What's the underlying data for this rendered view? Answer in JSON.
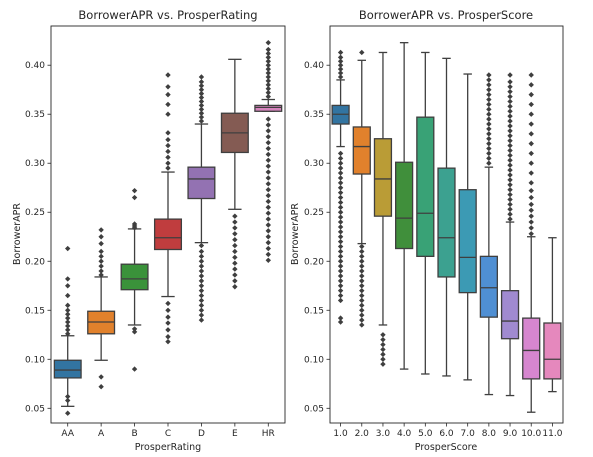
{
  "chart_data": [
    {
      "type": "box",
      "title": "BorrowerAPR vs. ProsperRating",
      "xlabel": "ProsperRating",
      "ylabel": "BorrowerAPR",
      "ylim": [
        0.035,
        0.44
      ],
      "yticks": [
        0.05,
        0.1,
        0.15,
        0.2,
        0.25,
        0.3,
        0.35,
        0.4
      ],
      "ytick_labels": [
        "0.05",
        "0.10",
        "0.15",
        "0.20",
        "0.25",
        "0.30",
        "0.35",
        "0.40"
      ],
      "grid": false,
      "categories": [
        "AA",
        "A",
        "B",
        "C",
        "D",
        "E",
        "HR"
      ],
      "boxes": [
        {
          "color": "#3274a1",
          "whislo": 0.052,
          "q1": 0.081,
          "med": 0.089,
          "q3": 0.099,
          "whishi": 0.124,
          "fliers": [
            0.045,
            0.058,
            0.062,
            0.126,
            0.13,
            0.134,
            0.138,
            0.142,
            0.146,
            0.15,
            0.155,
            0.165,
            0.175,
            0.182,
            0.213
          ]
        },
        {
          "color": "#e1812c",
          "whislo": 0.099,
          "q1": 0.126,
          "med": 0.138,
          "q3": 0.149,
          "whishi": 0.184,
          "fliers": [
            0.072,
            0.082,
            0.186,
            0.19,
            0.195,
            0.2,
            0.205,
            0.21,
            0.218,
            0.225,
            0.232
          ]
        },
        {
          "color": "#3a923a",
          "whislo": 0.135,
          "q1": 0.171,
          "med": 0.182,
          "q3": 0.197,
          "whishi": 0.233,
          "fliers": [
            0.09,
            0.128,
            0.131,
            0.234,
            0.236,
            0.238,
            0.265,
            0.272
          ]
        },
        {
          "color": "#c03d3e",
          "whislo": 0.164,
          "q1": 0.212,
          "med": 0.224,
          "q3": 0.243,
          "whishi": 0.291,
          "fliers": [
            0.118,
            0.123,
            0.13,
            0.137,
            0.143,
            0.15,
            0.157,
            0.295,
            0.3,
            0.306,
            0.312,
            0.318,
            0.324,
            0.331,
            0.35,
            0.36,
            0.37,
            0.378,
            0.39
          ]
        },
        {
          "color": "#9372b2",
          "whislo": 0.219,
          "q1": 0.264,
          "med": 0.284,
          "q3": 0.296,
          "whishi": 0.34,
          "fliers": [
            0.14,
            0.145,
            0.15,
            0.155,
            0.16,
            0.165,
            0.17,
            0.175,
            0.18,
            0.185,
            0.19,
            0.195,
            0.2,
            0.205,
            0.21,
            0.216,
            0.343,
            0.347,
            0.351,
            0.355,
            0.359,
            0.363,
            0.367,
            0.371,
            0.375,
            0.379,
            0.383,
            0.388
          ]
        },
        {
          "color": "#845b53",
          "whislo": 0.253,
          "q1": 0.311,
          "med": 0.331,
          "q3": 0.351,
          "whishi": 0.406,
          "fliers": [
            0.174,
            0.18,
            0.186,
            0.192,
            0.198,
            0.204,
            0.21,
            0.216,
            0.222,
            0.228,
            0.234,
            0.24,
            0.246
          ]
        },
        {
          "color": "#d684bd",
          "whislo": 0.353,
          "q1": 0.353,
          "med": 0.357,
          "q3": 0.359,
          "whishi": 0.365,
          "fliers": [
            0.201,
            0.207,
            0.213,
            0.219,
            0.225,
            0.231,
            0.237,
            0.243,
            0.249,
            0.255,
            0.261,
            0.267,
            0.273,
            0.279,
            0.285,
            0.291,
            0.297,
            0.303,
            0.309,
            0.315,
            0.321,
            0.327,
            0.333,
            0.339,
            0.345,
            0.368,
            0.372,
            0.376,
            0.38,
            0.384,
            0.388,
            0.392,
            0.396,
            0.4,
            0.404,
            0.408,
            0.412,
            0.416,
            0.423
          ]
        }
      ]
    },
    {
      "type": "box",
      "title": "BorrowerAPR vs. ProsperScore",
      "xlabel": "ProsperScore",
      "ylabel": "BorrowerAPR",
      "ylim": [
        0.035,
        0.44
      ],
      "yticks": [
        0.05,
        0.1,
        0.15,
        0.2,
        0.25,
        0.3,
        0.35,
        0.4
      ],
      "ytick_labels": [
        "0.05",
        "0.10",
        "0.15",
        "0.20",
        "0.25",
        "0.30",
        "0.35",
        "0.40"
      ],
      "grid": false,
      "categories": [
        "1.0",
        "2.0",
        "3.0",
        "4.0",
        "5.0",
        "6.0",
        "7.0",
        "8.0",
        "9.0",
        "10.0",
        "11.0"
      ],
      "boxes": [
        {
          "color": "#3274a1",
          "whislo": 0.317,
          "q1": 0.34,
          "med": 0.35,
          "q3": 0.359,
          "whishi": 0.385,
          "fliers": [
            0.138,
            0.142,
            0.16,
            0.165,
            0.17,
            0.175,
            0.18,
            0.185,
            0.19,
            0.195,
            0.2,
            0.205,
            0.21,
            0.215,
            0.22,
            0.225,
            0.23,
            0.235,
            0.24,
            0.245,
            0.25,
            0.255,
            0.26,
            0.265,
            0.27,
            0.275,
            0.28,
            0.285,
            0.29,
            0.295,
            0.3,
            0.305,
            0.31,
            0.388,
            0.392,
            0.396,
            0.4,
            0.404,
            0.408,
            0.413
          ]
        },
        {
          "color": "#e1812c",
          "whislo": 0.218,
          "q1": 0.289,
          "med": 0.317,
          "q3": 0.337,
          "whishi": 0.405,
          "fliers": [
            0.135,
            0.14,
            0.145,
            0.15,
            0.155,
            0.16,
            0.165,
            0.17,
            0.175,
            0.18,
            0.185,
            0.19,
            0.195,
            0.2,
            0.205,
            0.21,
            0.215,
            0.413
          ]
        },
        {
          "color": "#ba9c36",
          "whislo": 0.135,
          "q1": 0.246,
          "med": 0.284,
          "q3": 0.325,
          "whishi": 0.413,
          "fliers": [
            0.095,
            0.1,
            0.105,
            0.11,
            0.115,
            0.12,
            0.125
          ]
        },
        {
          "color": "#408f3b",
          "whislo": 0.09,
          "q1": 0.213,
          "med": 0.244,
          "q3": 0.301,
          "whishi": 0.423,
          "fliers": []
        },
        {
          "color": "#39a276",
          "whislo": 0.085,
          "q1": 0.205,
          "med": 0.249,
          "q3": 0.347,
          "whishi": 0.413,
          "fliers": []
        },
        {
          "color": "#3ca190",
          "whislo": 0.083,
          "q1": 0.184,
          "med": 0.224,
          "q3": 0.295,
          "whishi": 0.407,
          "fliers": []
        },
        {
          "color": "#3c9ab4",
          "whislo": 0.079,
          "q1": 0.168,
          "med": 0.204,
          "q3": 0.273,
          "whishi": 0.391,
          "fliers": []
        },
        {
          "color": "#4f8fd3",
          "whislo": 0.064,
          "q1": 0.143,
          "med": 0.173,
          "q3": 0.205,
          "whishi": 0.296,
          "fliers": [
            0.3,
            0.305,
            0.31,
            0.315,
            0.32,
            0.325,
            0.33,
            0.335,
            0.34,
            0.345,
            0.35,
            0.355,
            0.36,
            0.365,
            0.37,
            0.375,
            0.38,
            0.385,
            0.39
          ]
        },
        {
          "color": "#a08ad0",
          "whislo": 0.063,
          "q1": 0.121,
          "med": 0.139,
          "q3": 0.17,
          "whishi": 0.24,
          "fliers": [
            0.243,
            0.248,
            0.253,
            0.258,
            0.263,
            0.268,
            0.273,
            0.278,
            0.283,
            0.288,
            0.293,
            0.298,
            0.303,
            0.308,
            0.313,
            0.318,
            0.323,
            0.328,
            0.333,
            0.338,
            0.343,
            0.348,
            0.353,
            0.358,
            0.363,
            0.368,
            0.373,
            0.378,
            0.383,
            0.39
          ]
        },
        {
          "color": "#d686cf",
          "whislo": 0.046,
          "q1": 0.08,
          "med": 0.109,
          "q3": 0.142,
          "whishi": 0.225,
          "fliers": [
            0.228,
            0.234,
            0.24,
            0.246,
            0.252,
            0.258,
            0.265,
            0.272,
            0.28,
            0.29,
            0.3,
            0.31,
            0.32,
            0.33,
            0.34,
            0.35,
            0.36,
            0.37,
            0.38,
            0.39
          ]
        },
        {
          "color": "#e588bd",
          "whislo": 0.067,
          "q1": 0.08,
          "med": 0.1,
          "q3": 0.137,
          "whishi": 0.224,
          "fliers": []
        }
      ]
    }
  ]
}
